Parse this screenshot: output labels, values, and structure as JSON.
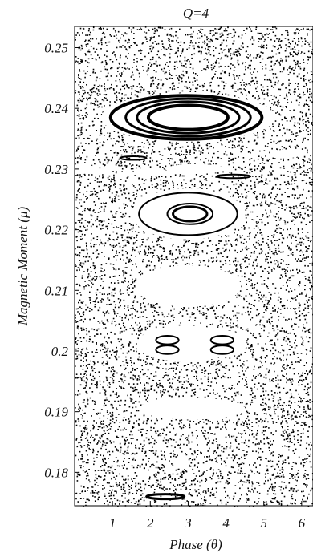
{
  "chart_data": {
    "type": "scatter",
    "title": "Q=4",
    "xlabel": "Phase (θ)",
    "ylabel": "Magnetic Moment (μ)",
    "xlim": [
      0,
      6.3
    ],
    "ylim": [
      0.1745,
      0.2535
    ],
    "xticks": [
      1,
      2,
      3,
      4,
      5,
      6
    ],
    "yticks": [
      0.18,
      0.19,
      0.2,
      0.21,
      0.22,
      0.23,
      0.24,
      0.25
    ],
    "ytick_labels": [
      "0.18",
      "0.19",
      "0.2",
      "0.21",
      "0.22",
      "0.23",
      "0.24",
      "0.25"
    ],
    "grid": false,
    "legend": false,
    "islands": [
      {
        "cx": 3.0,
        "cy": 0.2385,
        "rx": 2.3,
        "ry": 0.004
      },
      {
        "cx": 3.0,
        "cy": 0.2226,
        "rx": 1.5,
        "ry": 0.0042
      },
      {
        "cx": 3.0,
        "cy": 0.2107,
        "rx": 1.4,
        "ry": 0.0034
      },
      {
        "cx": 2.45,
        "cy": 0.2012,
        "rx": 0.6,
        "ry": 0.0022
      },
      {
        "cx": 3.95,
        "cy": 0.2012,
        "rx": 0.6,
        "ry": 0.0022
      },
      {
        "cx": 2.95,
        "cy": 0.2012,
        "rx": 1.3,
        "ry": 0.003
      },
      {
        "cx": 3.1,
        "cy": 0.1905,
        "rx": 1.4,
        "ry": 0.0018
      },
      {
        "cx": 2.0,
        "cy": 0.2295,
        "rx": 0.45,
        "ry": 0.0007
      },
      {
        "cx": 3.2,
        "cy": 0.23,
        "rx": 0.8,
        "ry": 0.0008
      },
      {
        "cx": 0.2,
        "cy": 0.23,
        "rx": 0.35,
        "ry": 0.0008
      },
      {
        "cx": 5.6,
        "cy": 0.2325,
        "rx": 0.4,
        "ry": 0.0007
      }
    ],
    "curves": [
      {
        "cx": 3.0,
        "cy": 0.2385,
        "rx": 1.05,
        "ry": 0.002,
        "w": 4
      },
      {
        "cx": 3.0,
        "cy": 0.2385,
        "rx": 1.35,
        "ry": 0.0026,
        "w": 3
      },
      {
        "cx": 3.0,
        "cy": 0.2385,
        "rx": 1.65,
        "ry": 0.0031,
        "w": 3
      },
      {
        "cx": 2.95,
        "cy": 0.2385,
        "rx": 2.0,
        "ry": 0.0036,
        "w": 4
      },
      {
        "cx": 3.05,
        "cy": 0.2226,
        "rx": 0.45,
        "ry": 0.0012,
        "w": 3
      },
      {
        "cx": 3.05,
        "cy": 0.2226,
        "rx": 0.6,
        "ry": 0.0017,
        "w": 2
      },
      {
        "cx": 3.0,
        "cy": 0.2226,
        "rx": 1.3,
        "ry": 0.0035,
        "w": 2
      },
      {
        "cx": 2.45,
        "cy": 0.2018,
        "rx": 0.3,
        "ry": 0.0007,
        "w": 2
      },
      {
        "cx": 2.45,
        "cy": 0.2002,
        "rx": 0.3,
        "ry": 0.0007,
        "w": 2
      },
      {
        "cx": 3.9,
        "cy": 0.2018,
        "rx": 0.3,
        "ry": 0.0007,
        "w": 2
      },
      {
        "cx": 3.9,
        "cy": 0.2002,
        "rx": 0.3,
        "ry": 0.0007,
        "w": 2
      },
      {
        "cx": 1.55,
        "cy": 0.2318,
        "rx": 0.35,
        "ry": 0.0003,
        "w": 2
      },
      {
        "cx": 4.2,
        "cy": 0.2288,
        "rx": 0.45,
        "ry": 0.0003,
        "w": 2
      },
      {
        "cx": 2.4,
        "cy": 0.176,
        "rx": 0.5,
        "ry": 0.0004,
        "w": 3
      }
    ]
  }
}
